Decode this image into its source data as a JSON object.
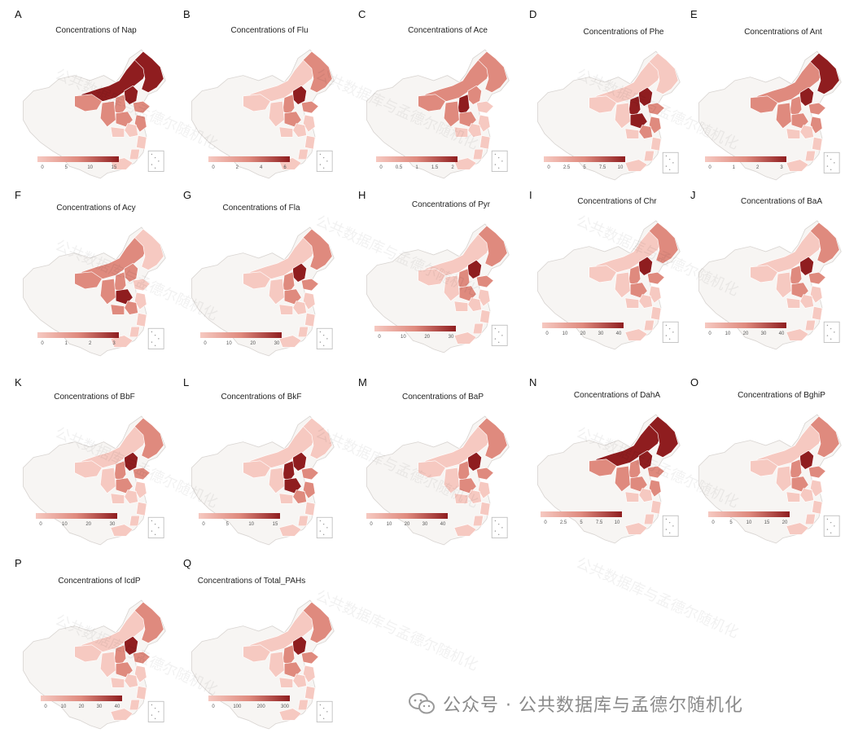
{
  "footer": {
    "brand_text": "公众号 · 公共数据库与孟德尔随机化",
    "icon": "wechat-icon"
  },
  "watermark": {
    "text": "公共数据库与孟德尔随机化"
  },
  "colors": {
    "low": "#f6c9c1",
    "mid": "#df8a7e",
    "high": "#8f1d1f",
    "no_data": "#f7f5f3",
    "border": "#d9d5d2"
  },
  "panels": [
    {
      "letter": "A",
      "title": "Concentrations of Nap",
      "ticks": [
        "0",
        "5",
        "10",
        "15"
      ],
      "highlight": "north"
    },
    {
      "letter": "B",
      "title": "Concentrations of Flu",
      "ticks": [
        "0",
        "2",
        "4",
        "6"
      ],
      "highlight": "beijing"
    },
    {
      "letter": "C",
      "title": "Concentrations of Ace",
      "ticks": [
        "0",
        "0.5",
        "1",
        "1.5",
        "2"
      ],
      "highlight": "shanxi"
    },
    {
      "letter": "D",
      "title": "Concentrations of Phe",
      "ticks": [
        "0",
        "2.5",
        "5",
        "7.5",
        "10"
      ],
      "highlight": "central"
    },
    {
      "letter": "E",
      "title": "Concentrations of Ant",
      "ticks": [
        "0",
        "1",
        "2",
        "3"
      ],
      "highlight": "northeast"
    },
    {
      "letter": "F",
      "title": "Concentrations of Acy",
      "ticks": [
        "0",
        "1",
        "2",
        "3"
      ],
      "highlight": "henan"
    },
    {
      "letter": "G",
      "title": "Concentrations of Fla",
      "ticks": [
        "0",
        "10",
        "20",
        "30"
      ],
      "highlight": "beijing"
    },
    {
      "letter": "H",
      "title": "Concentrations of Pyr",
      "ticks": [
        "0",
        "10",
        "20",
        "30"
      ],
      "highlight": "beijing"
    },
    {
      "letter": "I",
      "title": "Concentrations of Chr",
      "ticks": [
        "0",
        "10",
        "20",
        "30",
        "40"
      ],
      "highlight": "beijing"
    },
    {
      "letter": "J",
      "title": "Concentrations of BaA",
      "ticks": [
        "0",
        "10",
        "20",
        "30",
        "40"
      ],
      "highlight": "beijing"
    },
    {
      "letter": "K",
      "title": "Concentrations of BbF",
      "ticks": [
        "0",
        "10",
        "20",
        "30"
      ],
      "highlight": "beijing"
    },
    {
      "letter": "L",
      "title": "Concentrations of BkF",
      "ticks": [
        "0",
        "5",
        "10",
        "15"
      ],
      "highlight": "central"
    },
    {
      "letter": "M",
      "title": "Concentrations of BaP",
      "ticks": [
        "0",
        "10",
        "20",
        "30",
        "40"
      ],
      "highlight": "beijing"
    },
    {
      "letter": "N",
      "title": "Concentrations of DahA",
      "ticks": [
        "0",
        "2.5",
        "5",
        "7.5",
        "10"
      ],
      "highlight": "north"
    },
    {
      "letter": "O",
      "title": "Concentrations of BghiP",
      "ticks": [
        "0",
        "5",
        "10",
        "15",
        "20"
      ],
      "highlight": "beijing"
    },
    {
      "letter": "P",
      "title": "Concentrations of IcdP",
      "ticks": [
        "0",
        "10",
        "20",
        "30",
        "40"
      ],
      "highlight": "beijing"
    },
    {
      "letter": "Q",
      "title": "Concentrations of Total_PAHs",
      "ticks": [
        "0",
        "100",
        "200",
        "300"
      ],
      "highlight": "beijing"
    }
  ]
}
